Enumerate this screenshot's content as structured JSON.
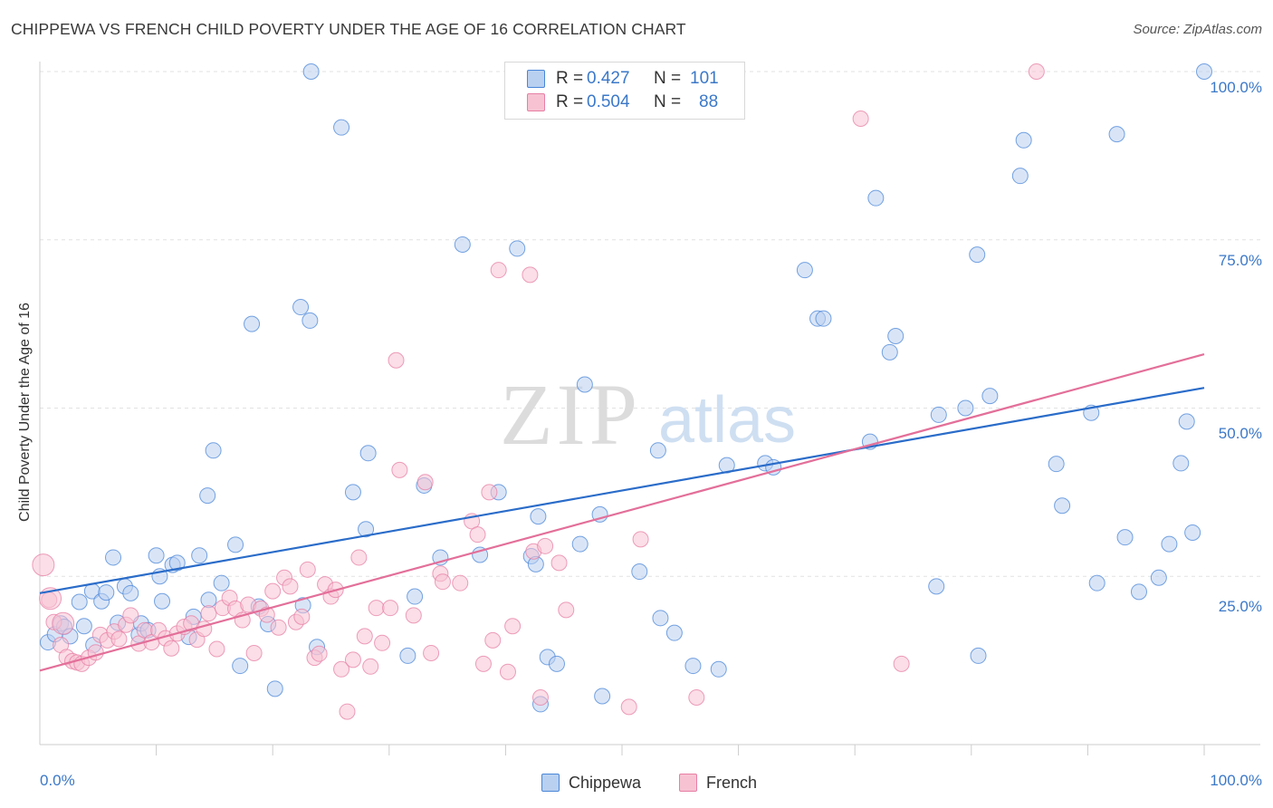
{
  "title": "CHIPPEWA VS FRENCH CHILD POVERTY UNDER THE AGE OF 16 CORRELATION CHART",
  "source": "Source: ZipAtlas.com",
  "watermark": {
    "zip": "ZIP",
    "atlas": "atlas"
  },
  "legend_top": {
    "rows": [
      {
        "r_label": "R =",
        "r_value": "0.427",
        "n_label": "N =",
        "n_value": "101",
        "color": "#4a86d8"
      },
      {
        "r_label": "R =",
        "r_value": "0.504",
        "n_label": "N =",
        "n_value": "88",
        "color": "#e77fa4"
      }
    ]
  },
  "legend_bottom": {
    "items": [
      "Chippewa",
      "French"
    ]
  },
  "axis": {
    "x_tick_left": "0.0%",
    "x_tick_right": "100.0%",
    "y_ticks": [
      "100.0%",
      "75.0%",
      "50.0%",
      "25.0%"
    ]
  },
  "chart_data": {
    "type": "scatter",
    "title": "CHIPPEWA VS FRENCH CHILD POVERTY UNDER THE AGE OF 16 CORRELATION CHART",
    "xlabel": "",
    "ylabel": "Child Poverty Under the Age of 16",
    "xlim": [
      0,
      100
    ],
    "ylim": [
      0,
      100
    ],
    "grid": true,
    "legend_placement": "bottom-center",
    "series": [
      {
        "name": "Chippewa",
        "color": "#4a86d8",
        "fill": "#b9d0f0",
        "r": 0.427,
        "n": 101,
        "trend": {
          "x": [
            0,
            100
          ],
          "y": [
            22.5,
            53.0
          ]
        },
        "points": [
          [
            0.7,
            15.2
          ],
          [
            1.3,
            16.4
          ],
          [
            1.8,
            18.0
          ],
          [
            2.1,
            17.5
          ],
          [
            2.6,
            16.1
          ],
          [
            3.4,
            21.2
          ],
          [
            3.8,
            17.6
          ],
          [
            4.5,
            22.8
          ],
          [
            4.6,
            14.8
          ],
          [
            5.3,
            21.3
          ],
          [
            5.7,
            22.6
          ],
          [
            6.3,
            27.8
          ],
          [
            6.7,
            18.1
          ],
          [
            7.3,
            23.5
          ],
          [
            7.8,
            22.5
          ],
          [
            8.5,
            16.3
          ],
          [
            8.7,
            18.0
          ],
          [
            9.3,
            17.0
          ],
          [
            10.0,
            28.1
          ],
          [
            10.3,
            25.0
          ],
          [
            10.5,
            21.3
          ],
          [
            11.4,
            26.7
          ],
          [
            11.8,
            27.0
          ],
          [
            12.8,
            16.0
          ],
          [
            13.2,
            19.0
          ],
          [
            13.7,
            28.1
          ],
          [
            14.5,
            21.5
          ],
          [
            14.4,
            37.0
          ],
          [
            14.9,
            43.7
          ],
          [
            15.6,
            24.0
          ],
          [
            16.8,
            29.7
          ],
          [
            17.2,
            11.7
          ],
          [
            18.2,
            62.5
          ],
          [
            18.8,
            20.5
          ],
          [
            19.6,
            17.9
          ],
          [
            20.2,
            8.3
          ],
          [
            22.4,
            65.0
          ],
          [
            22.6,
            20.7
          ],
          [
            23.2,
            63.0
          ],
          [
            23.8,
            14.5
          ],
          [
            23.3,
            100
          ],
          [
            25.9,
            91.7
          ],
          [
            26.9,
            37.5
          ],
          [
            28.0,
            32.0
          ],
          [
            28.2,
            43.3
          ],
          [
            31.6,
            13.2
          ],
          [
            32.2,
            22.0
          ],
          [
            33.0,
            38.5
          ],
          [
            34.4,
            27.8
          ],
          [
            36.3,
            74.3
          ],
          [
            37.8,
            28.2
          ],
          [
            39.4,
            37.5
          ],
          [
            41.0,
            73.7
          ],
          [
            42.2,
            28.0
          ],
          [
            42.6,
            26.8
          ],
          [
            42.8,
            33.9
          ],
          [
            43.0,
            6.0
          ],
          [
            43.6,
            13.0
          ],
          [
            44.4,
            12.0
          ],
          [
            46.4,
            29.8
          ],
          [
            46.8,
            53.5
          ],
          [
            48.1,
            34.2
          ],
          [
            48.3,
            7.2
          ],
          [
            51.5,
            25.7
          ],
          [
            53.1,
            43.7
          ],
          [
            53.3,
            18.8
          ],
          [
            54.5,
            16.6
          ],
          [
            56.1,
            11.7
          ],
          [
            58.3,
            11.2
          ],
          [
            59.0,
            41.5
          ],
          [
            62.3,
            41.8
          ],
          [
            63.0,
            41.2
          ],
          [
            65.7,
            70.5
          ],
          [
            66.8,
            63.3
          ],
          [
            67.3,
            63.3
          ],
          [
            71.3,
            45.0
          ],
          [
            71.8,
            81.2
          ],
          [
            73.0,
            58.3
          ],
          [
            73.5,
            60.7
          ],
          [
            77.0,
            23.5
          ],
          [
            77.2,
            49.0
          ],
          [
            79.5,
            50.0
          ],
          [
            80.5,
            72.8
          ],
          [
            80.6,
            13.2
          ],
          [
            81.6,
            51.8
          ],
          [
            84.2,
            84.5
          ],
          [
            84.5,
            89.8
          ],
          [
            87.3,
            41.7
          ],
          [
            87.8,
            35.5
          ],
          [
            90.3,
            49.3
          ],
          [
            90.8,
            24.0
          ],
          [
            92.5,
            90.7
          ],
          [
            93.2,
            30.8
          ],
          [
            94.4,
            22.7
          ],
          [
            96.1,
            24.8
          ],
          [
            97.0,
            29.8
          ],
          [
            98.0,
            41.8
          ],
          [
            98.5,
            48.0
          ],
          [
            99.0,
            31.5
          ],
          [
            100.0,
            100
          ]
        ]
      },
      {
        "name": "French",
        "color": "#e77fa4",
        "fill": "#f7c3d3",
        "r": 0.504,
        "n": 88,
        "trend": {
          "x": [
            0,
            100
          ],
          "y": [
            11.0,
            58.0
          ]
        },
        "points": [
          [
            0.3,
            26.7
          ],
          [
            0.8,
            21.5
          ],
          [
            1.2,
            18.2
          ],
          [
            1.8,
            14.8
          ],
          [
            2.3,
            13.0
          ],
          [
            2.8,
            12.4
          ],
          [
            3.2,
            12.2
          ],
          [
            3.6,
            12.0
          ],
          [
            4.2,
            12.9
          ],
          [
            4.8,
            13.7
          ],
          [
            5.2,
            16.3
          ],
          [
            5.8,
            15.5
          ],
          [
            6.4,
            16.8
          ],
          [
            6.8,
            15.7
          ],
          [
            7.4,
            17.8
          ],
          [
            7.8,
            19.2
          ],
          [
            8.5,
            15.0
          ],
          [
            9.0,
            17.0
          ],
          [
            9.6,
            15.2
          ],
          [
            10.2,
            17.0
          ],
          [
            10.8,
            15.8
          ],
          [
            11.3,
            14.3
          ],
          [
            11.8,
            16.5
          ],
          [
            12.4,
            17.5
          ],
          [
            13.0,
            18.0
          ],
          [
            13.5,
            15.6
          ],
          [
            14.1,
            17.2
          ],
          [
            14.5,
            19.5
          ],
          [
            15.2,
            14.2
          ],
          [
            15.7,
            20.3
          ],
          [
            16.3,
            21.8
          ],
          [
            16.8,
            20.2
          ],
          [
            17.4,
            18.5
          ],
          [
            17.9,
            20.8
          ],
          [
            18.4,
            13.6
          ],
          [
            19.0,
            20.2
          ],
          [
            19.5,
            19.3
          ],
          [
            20.0,
            22.8
          ],
          [
            20.5,
            17.4
          ],
          [
            21.0,
            24.8
          ],
          [
            21.5,
            23.5
          ],
          [
            22.0,
            18.2
          ],
          [
            22.5,
            19.0
          ],
          [
            23.0,
            26.0
          ],
          [
            23.6,
            12.9
          ],
          [
            24.0,
            13.5
          ],
          [
            24.5,
            23.8
          ],
          [
            25.0,
            22.0
          ],
          [
            25.4,
            23.0
          ],
          [
            25.9,
            11.2
          ],
          [
            26.4,
            4.9
          ],
          [
            26.9,
            12.6
          ],
          [
            27.4,
            27.8
          ],
          [
            27.9,
            16.1
          ],
          [
            28.4,
            11.6
          ],
          [
            28.9,
            20.3
          ],
          [
            29.4,
            15.1
          ],
          [
            30.1,
            20.3
          ],
          [
            30.6,
            57.1
          ],
          [
            30.9,
            40.8
          ],
          [
            32.1,
            19.2
          ],
          [
            33.1,
            39.0
          ],
          [
            33.6,
            13.6
          ],
          [
            34.4,
            25.4
          ],
          [
            34.6,
            24.2
          ],
          [
            36.1,
            24.0
          ],
          [
            37.1,
            33.2
          ],
          [
            37.6,
            31.2
          ],
          [
            38.1,
            12.0
          ],
          [
            38.6,
            37.5
          ],
          [
            38.9,
            15.5
          ],
          [
            39.4,
            70.5
          ],
          [
            40.2,
            10.8
          ],
          [
            40.6,
            17.6
          ],
          [
            42.1,
            69.8
          ],
          [
            42.4,
            28.7
          ],
          [
            43.4,
            29.5
          ],
          [
            44.6,
            27.0
          ],
          [
            45.2,
            20.0
          ],
          [
            43.0,
            7.0
          ],
          [
            50.6,
            5.6
          ],
          [
            51.6,
            30.5
          ],
          [
            56.4,
            7.0
          ],
          [
            70.5,
            93.0
          ],
          [
            74.0,
            12.0
          ],
          [
            85.6,
            100.0
          ],
          [
            0.9,
            21.7
          ],
          [
            2.0,
            18.0
          ]
        ]
      }
    ]
  }
}
